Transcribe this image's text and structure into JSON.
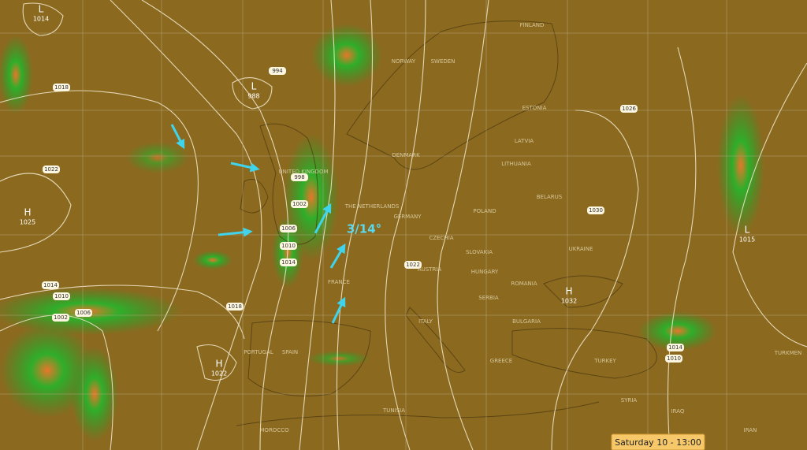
{
  "map": {
    "annotation": "3/14°",
    "timestamp": "Saturday 10 - 13:00",
    "pressure_centers": [
      {
        "kind": "L",
        "value": "1014"
      },
      {
        "kind": "H",
        "value": "1025"
      },
      {
        "kind": "L",
        "value": "988"
      },
      {
        "kind": "H",
        "value": "1022"
      },
      {
        "kind": "H",
        "value": "1032"
      },
      {
        "kind": "L",
        "value": "1015"
      }
    ],
    "isobar_labels": [
      "1018",
      "1022",
      "994",
      "998",
      "1002",
      "1006",
      "1010",
      "1014",
      "1014",
      "1010",
      "1006",
      "1002",
      "1018",
      "1022",
      "1026",
      "1030",
      "1014",
      "1010"
    ],
    "countries": [
      "FINLAND",
      "NORWAY",
      "SWEDEN",
      "ESTONIA",
      "LATVIA",
      "LITHUANIA",
      "DENMARK",
      "UNITED KINGDOM",
      "THE NETHERLANDS",
      "GERMANY",
      "BELARUS",
      "POLAND",
      "CZECHIA",
      "SLOVAKIA",
      "UKRAINE",
      "HUNGARY",
      "AUSTRIA",
      "FRANCE",
      "ROMANIA",
      "SERBIA",
      "BULGARIA",
      "ITALY",
      "GREECE",
      "TURKEY",
      "SPAIN",
      "PORTUGAL",
      "MOROCCO",
      "TUNISIA",
      "SYRIA",
      "IRAQ",
      "IRAN",
      "TURKMEN"
    ]
  }
}
